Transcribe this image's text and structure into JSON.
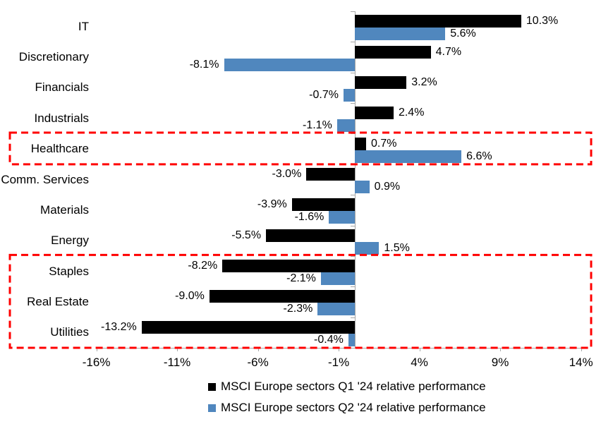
{
  "chart_data": {
    "type": "bar",
    "orientation": "horizontal",
    "title": "",
    "categories": [
      "IT",
      "Discretionary",
      "Financials",
      "Industrials",
      "Healthcare",
      "Comm. Services",
      "Materials",
      "Energy",
      "Staples",
      "Real Estate",
      "Utilities"
    ],
    "series": [
      {
        "name": "MSCI Europe sectors Q1 '24 relative performance",
        "color": "#000000",
        "values": [
          10.3,
          4.7,
          3.2,
          2.4,
          0.7,
          -3.0,
          -3.9,
          -5.5,
          -8.2,
          -9.0,
          -13.2
        ]
      },
      {
        "name": "MSCI Europe sectors Q2 '24 relative performance",
        "color": "#5087BE",
        "values": [
          5.6,
          -8.1,
          -0.7,
          -1.1,
          6.6,
          0.9,
          -1.6,
          1.5,
          -2.1,
          -2.3,
          -0.4
        ]
      }
    ],
    "value_labels": [
      [
        "10.3%",
        "4.7%",
        "3.2%",
        "2.4%",
        "0.7%",
        "-3.0%",
        "-3.9%",
        "-5.5%",
        "-8.2%",
        "-9.0%",
        "-13.2%"
      ],
      [
        "5.6%",
        "-8.1%",
        "-0.7%",
        "-1.1%",
        "6.6%",
        "0.9%",
        "-1.6%",
        "1.5%",
        "-2.1%",
        "-2.3%",
        "-0.4%"
      ]
    ],
    "x_ticks": [
      {
        "value": -16,
        "label": "-16%"
      },
      {
        "value": -11,
        "label": "-11%"
      },
      {
        "value": -6,
        "label": "-6%"
      },
      {
        "value": -1,
        "label": "-1%"
      },
      {
        "value": 4,
        "label": "4%"
      },
      {
        "value": 9,
        "label": "9%"
      },
      {
        "value": 14,
        "label": "14%"
      }
    ],
    "xlim": [
      -16,
      14
    ],
    "grid": false,
    "legend_position": "bottom",
    "axis_color": "#a6a6a6",
    "highlight_color": "#ff0000",
    "highlight_boxes": [
      {
        "name": "healthcare-highlight",
        "start_category": "Healthcare",
        "end_category": "Healthcare"
      },
      {
        "name": "defensives-highlight",
        "start_category": "Staples",
        "end_category": "Utilities"
      }
    ]
  }
}
